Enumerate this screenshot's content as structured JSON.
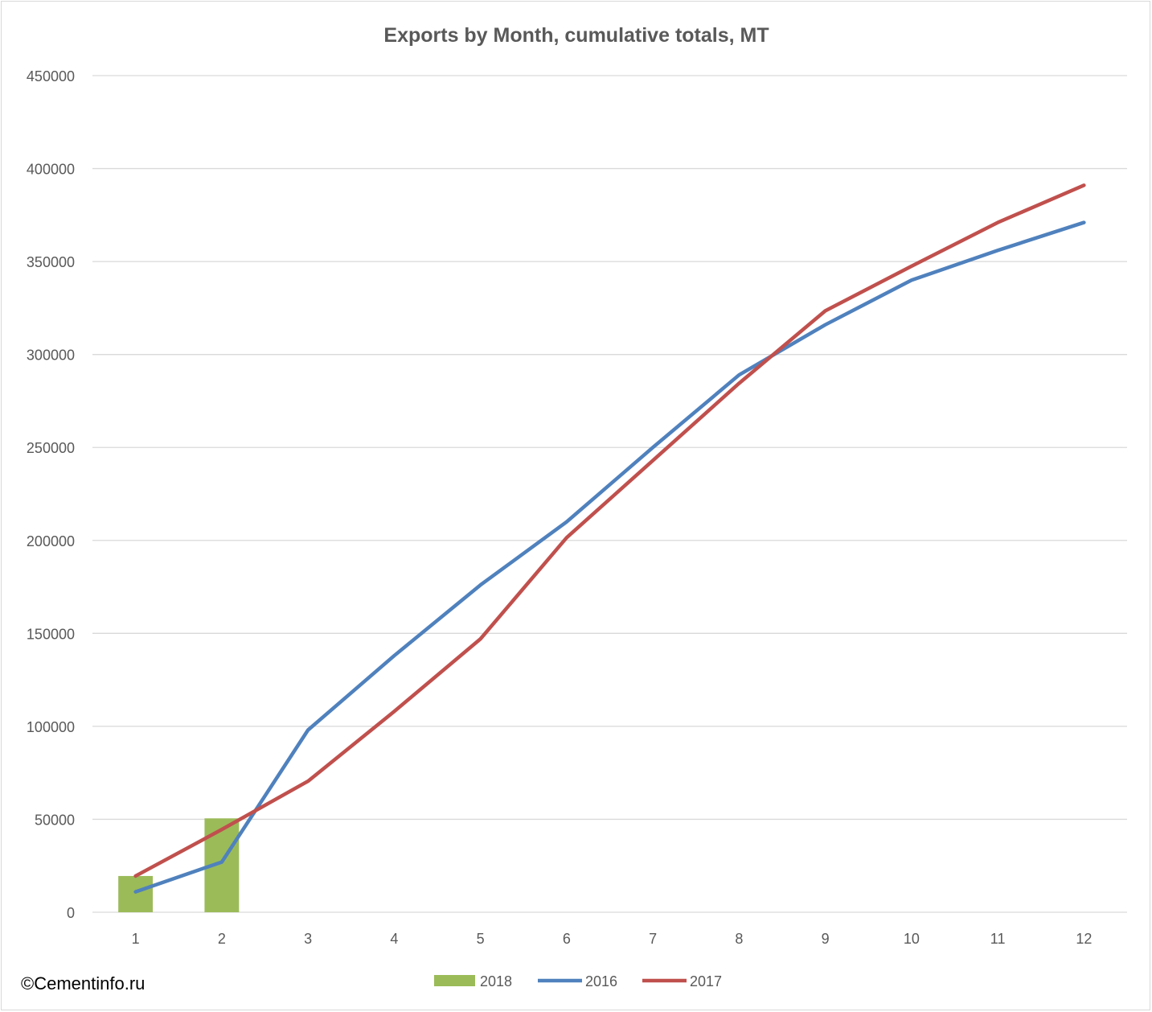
{
  "chart_data": {
    "type": "bar+line",
    "title": "Exports by Month, cumulative totals, MT",
    "xlabel": "",
    "ylabel": "",
    "categories": [
      "1",
      "2",
      "3",
      "4",
      "5",
      "6",
      "7",
      "8",
      "9",
      "10",
      "11",
      "12"
    ],
    "ylim": [
      0,
      450000
    ],
    "yticks": [
      "0",
      "50000",
      "100000",
      "150000",
      "200000",
      "250000",
      "300000",
      "350000",
      "400000",
      "450000"
    ],
    "grid": true,
    "legend_position": "bottom",
    "series": [
      {
        "name": "2018",
        "kind": "bar",
        "color": "#9bbb59",
        "values": [
          19500,
          50500,
          null,
          null,
          null,
          null,
          null,
          null,
          null,
          null,
          null,
          null
        ]
      },
      {
        "name": "2016",
        "kind": "line",
        "color": "#4f81bd",
        "values": [
          11000,
          27000,
          98000,
          138000,
          176000,
          210000,
          250000,
          289000,
          316000,
          340000,
          356000,
          371000
        ]
      },
      {
        "name": "2017",
        "kind": "line",
        "color": "#c0504d",
        "values": [
          19500,
          44500,
          70500,
          108000,
          147000,
          201500,
          243000,
          284500,
          323500,
          347500,
          371000,
          391000
        ]
      }
    ]
  },
  "watermark": "©Cementinfo.ru"
}
